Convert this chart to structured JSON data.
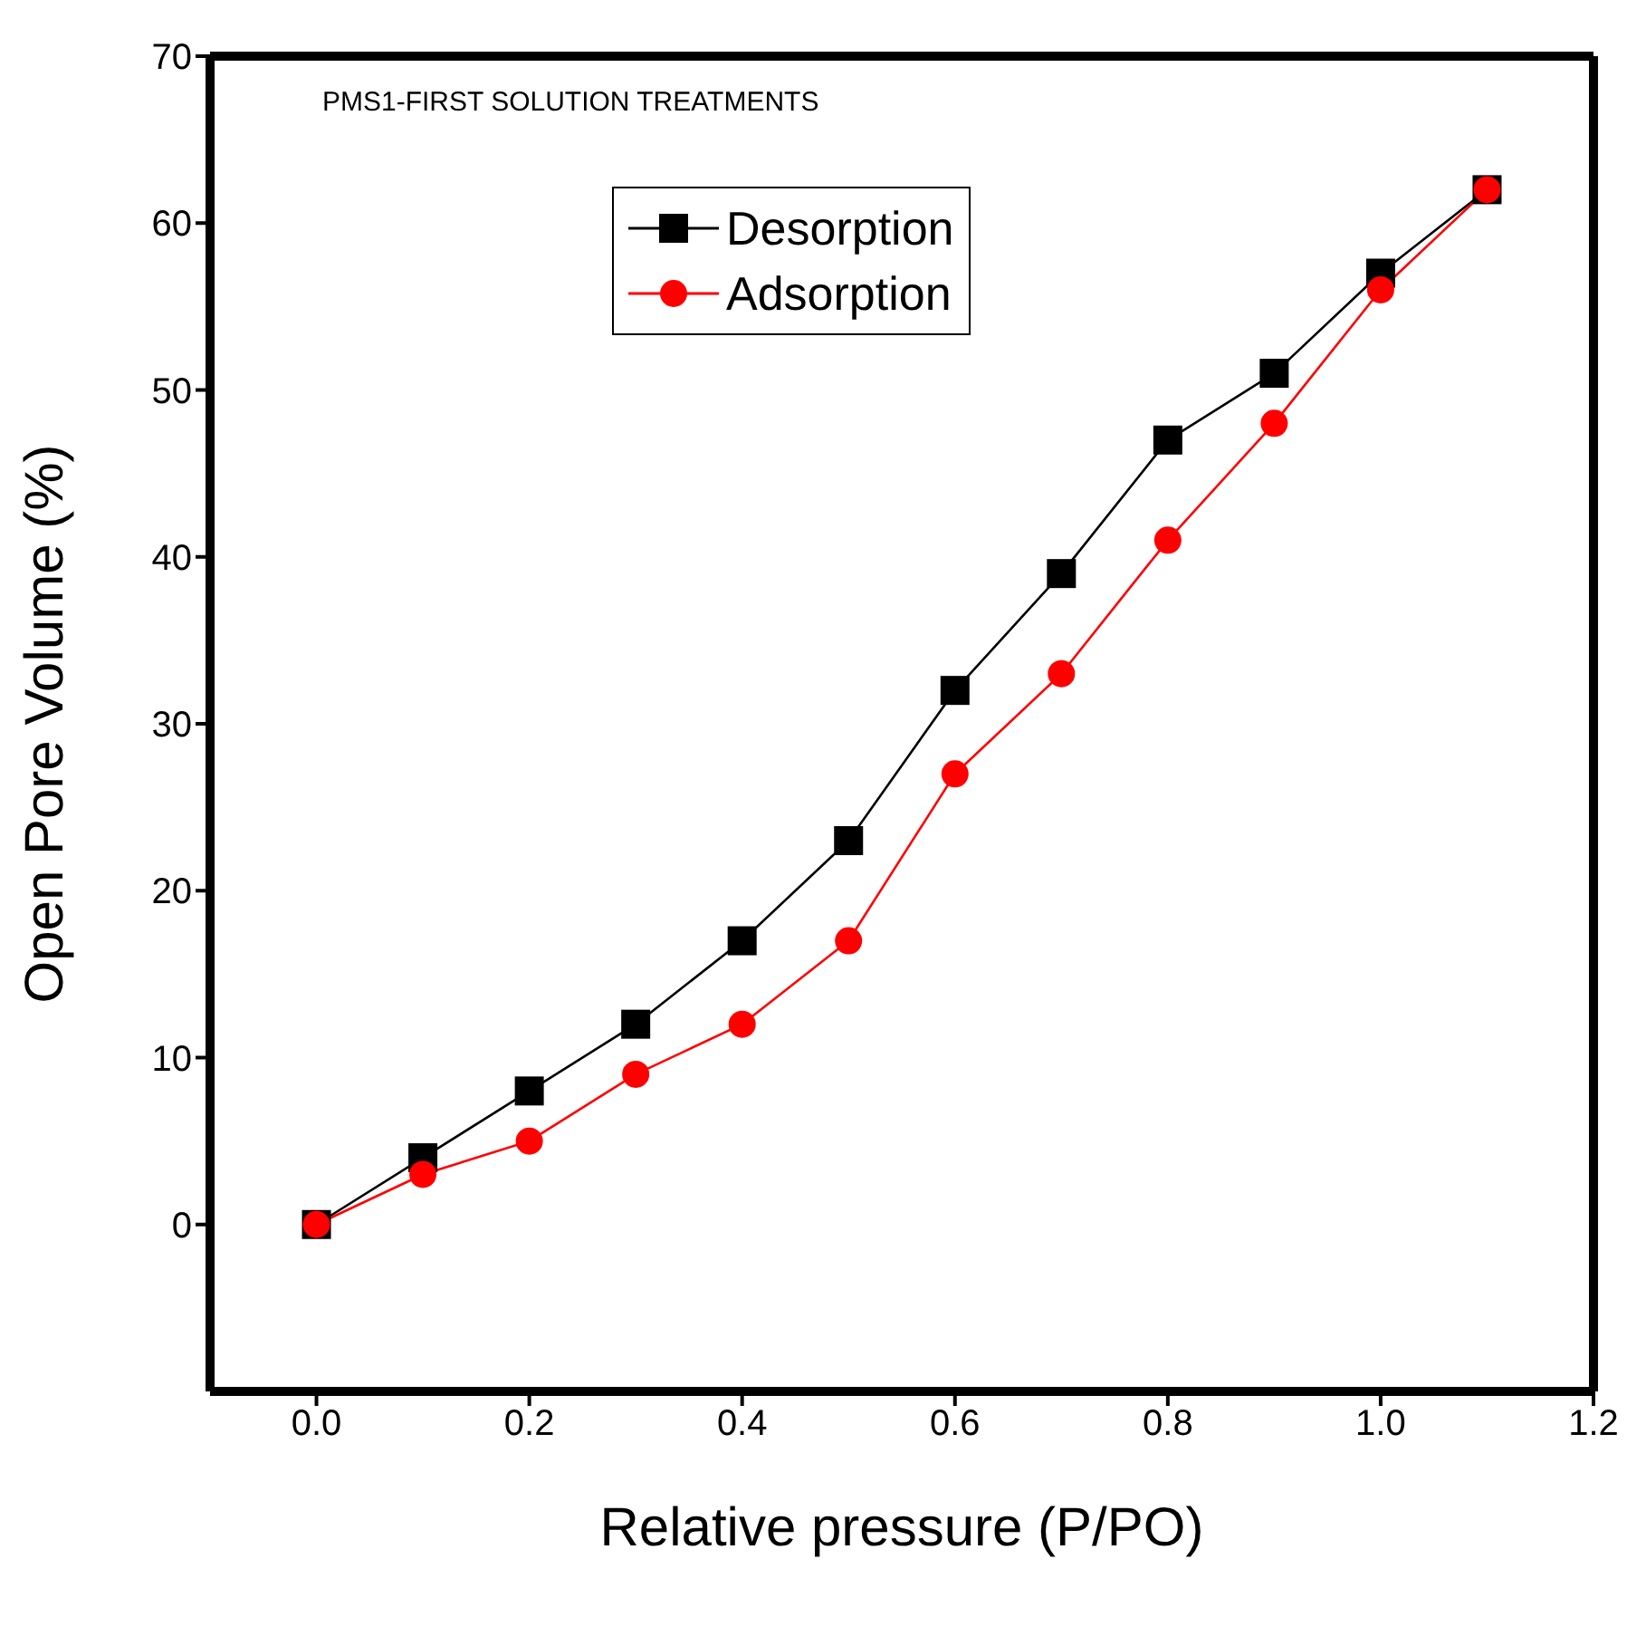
{
  "chart_data": {
    "type": "line",
    "title": "PMS1-FIRST SOLUTION TREATMENTS",
    "xlabel": "Relative pressure (P/PO)",
    "ylabel": "Open Pore Volume (%)",
    "x": [
      0,
      0.1,
      0.2,
      0.3,
      0.4,
      0.5,
      0.6,
      0.7,
      0.8,
      0.9,
      1.0,
      1.1
    ],
    "series": [
      {
        "name": "Desorption",
        "color": "#000000",
        "marker": "square",
        "values": [
          0,
          4,
          8,
          12,
          17,
          23,
          32,
          39,
          47,
          51,
          57,
          62
        ]
      },
      {
        "name": "Adsorption",
        "color": "#ff0000",
        "marker": "circle",
        "values": [
          0,
          3,
          5,
          9,
          12,
          17,
          27,
          33,
          41,
          48,
          56,
          62
        ]
      }
    ],
    "xlim": [
      -0.1,
      1.2
    ],
    "xticks": [
      {
        "value": 0,
        "label": "0.0"
      },
      {
        "value": 0.2,
        "label": "0.2"
      },
      {
        "value": 0.4,
        "label": "0.4"
      },
      {
        "value": 0.6,
        "label": "0.6"
      },
      {
        "value": 0.8,
        "label": "0.8"
      },
      {
        "value": 1,
        "label": "1.0"
      },
      {
        "value": 1.2,
        "label": "1.2"
      }
    ],
    "ylim": [
      -10,
      70
    ],
    "yticks": [
      0,
      10,
      20,
      30,
      40,
      50,
      60,
      70
    ],
    "grid": false,
    "legend": "top"
  }
}
